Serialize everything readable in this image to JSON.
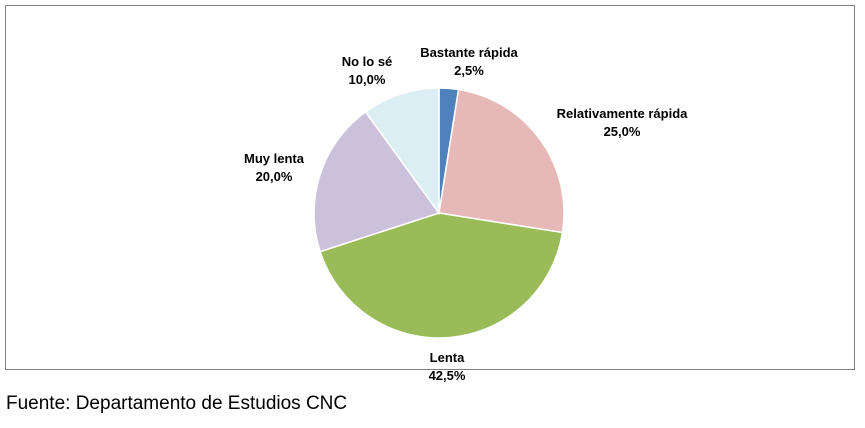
{
  "chart_data": {
    "type": "pie",
    "start_angle_deg": 0,
    "direction": "clockwise",
    "slices": [
      {
        "label": "Bastante rápida",
        "value": 2.5,
        "display": "2,5%",
        "color": "#4f81bd"
      },
      {
        "label": "Relativamente rápida",
        "value": 25.0,
        "display": "25,0%",
        "color": "#e6b9b8"
      },
      {
        "label": "Lenta",
        "value": 42.5,
        "display": "42,5%",
        "color": "#9bbb59"
      },
      {
        "label": "Muy lenta",
        "value": 20.0,
        "display": "20,0%",
        "color": "#ccc1da"
      },
      {
        "label": "No lo sé",
        "value": 10.0,
        "display": "10,0%",
        "color": "#dbeef4"
      }
    ]
  },
  "source_note": "Fuente: Departamento de Estudios CNC"
}
